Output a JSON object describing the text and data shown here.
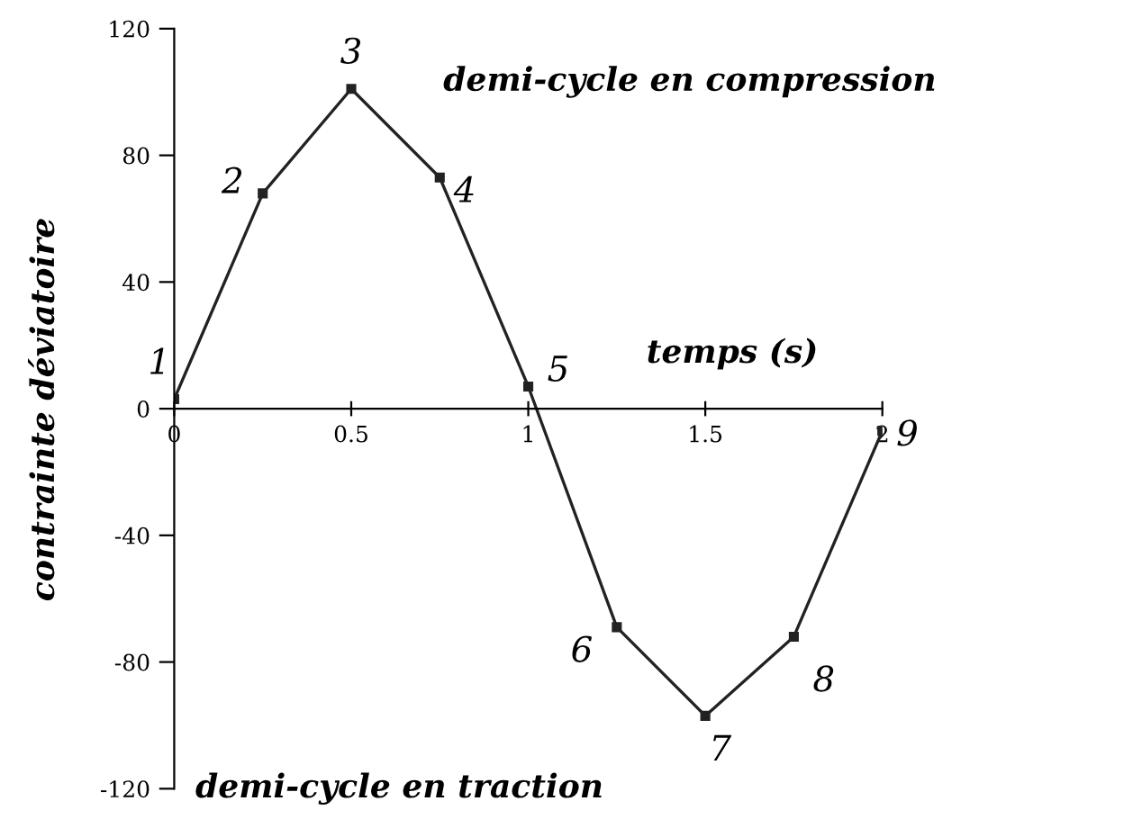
{
  "chart_data": {
    "type": "line",
    "xlabel": "temps (s)",
    "ylabel": "contrainte déviatoire",
    "x": [
      0,
      0.25,
      0.5,
      0.75,
      1,
      1.25,
      1.5,
      1.75,
      2
    ],
    "series": [
      {
        "color": "#222222",
        "values": [
          3,
          68,
          101,
          73,
          7,
          -69,
          -97,
          -72,
          -7
        ]
      }
    ],
    "marker": "square",
    "line_style": "solid",
    "grid": false,
    "xlim": [
      0,
      2
    ],
    "ylim": [
      -120,
      120
    ],
    "xticks": [
      0,
      0.5,
      1,
      1.5,
      2
    ],
    "yticks": [
      -120,
      -80,
      -40,
      0,
      40,
      80,
      120
    ],
    "annotations": [
      {
        "text": "1",
        "x": 0,
        "y": 3
      },
      {
        "text": "2",
        "x": 0.25,
        "y": 68
      },
      {
        "text": "3",
        "x": 0.5,
        "y": 101
      },
      {
        "text": "4",
        "x": 0.75,
        "y": 73
      },
      {
        "text": "5",
        "x": 1,
        "y": 7
      },
      {
        "text": "6",
        "x": 1.25,
        "y": -69
      },
      {
        "text": "7",
        "x": 1.5,
        "y": -97
      },
      {
        "text": "8",
        "x": 1.75,
        "y": -72
      },
      {
        "text": "9",
        "x": 2,
        "y": -7
      },
      "demi-cycle en compression",
      "demi-cycle en traction"
    ]
  }
}
